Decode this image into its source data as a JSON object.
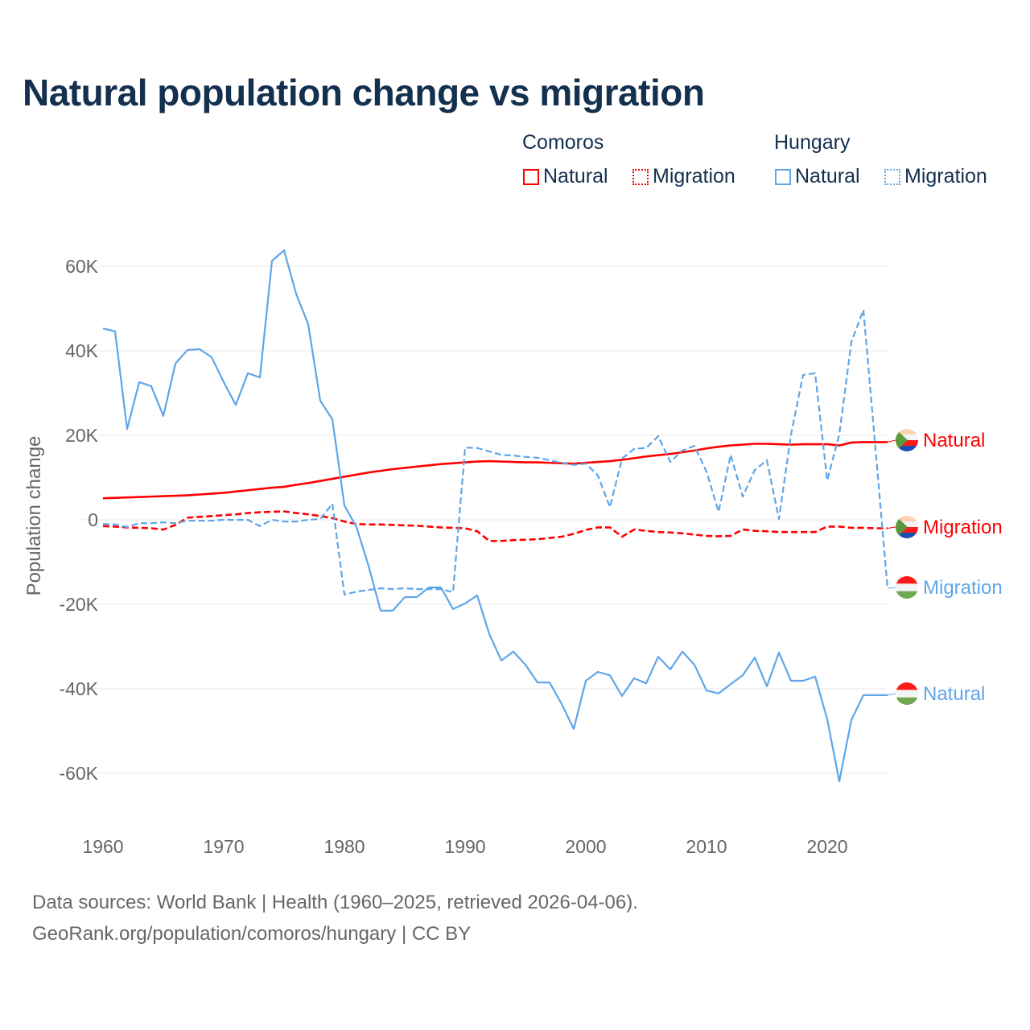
{
  "title": "Natural population change vs migration",
  "legend": {
    "groups": [
      {
        "name": "Comoros",
        "items": [
          "Natural",
          "Migration"
        ]
      },
      {
        "name": "Hungary",
        "items": [
          "Natural",
          "Migration"
        ]
      }
    ]
  },
  "footer": {
    "line1": "Data sources: World Bank | Health (1960–2025, retrieved 2026-04-06).",
    "line2": "GeoRank.org/population/comoros/hungary | CC BY"
  },
  "colors": {
    "comoros": "#ff0000",
    "hungary": "#5ea6e8"
  },
  "chart_data": {
    "type": "line",
    "title": "Natural population change vs migration",
    "xlabel": "",
    "ylabel": "Population change",
    "xlim": [
      1960,
      2025
    ],
    "ylim": [
      -70000,
      65000
    ],
    "x_ticks": [
      "1960",
      "1970",
      "1980",
      "1990",
      "2000",
      "2010",
      "2020"
    ],
    "y_ticks": [
      {
        "v": 60000,
        "label": "60K"
      },
      {
        "v": 40000,
        "label": "40K"
      },
      {
        "v": 20000,
        "label": "20K"
      },
      {
        "v": 0,
        "label": "0"
      },
      {
        "v": -20000,
        "label": "-20K"
      },
      {
        "v": -40000,
        "label": "-40K"
      },
      {
        "v": -60000,
        "label": "-60K"
      }
    ],
    "grid": true,
    "x_start": 1960,
    "unit": "thousands",
    "series": [
      {
        "country": "Comoros",
        "name": "Natural",
        "end_label": "Natural",
        "color": "#ff0000",
        "dash": false,
        "flag": "comoros",
        "values": [
          5.1,
          5.2,
          5.3,
          5.4,
          5.5,
          5.6,
          5.7,
          5.8,
          6.0,
          6.2,
          6.4,
          6.7,
          7.0,
          7.3,
          7.6,
          7.8,
          8.3,
          8.7,
          9.2,
          9.7,
          10.2,
          10.7,
          11.2,
          11.6,
          12.0,
          12.3,
          12.6,
          12.9,
          13.2,
          13.4,
          13.6,
          13.8,
          13.9,
          13.8,
          13.7,
          13.6,
          13.6,
          13.5,
          13.4,
          13.3,
          13.5,
          13.7,
          13.9,
          14.2,
          14.6,
          15.0,
          15.3,
          15.6,
          16.0,
          16.4,
          16.9,
          17.3,
          17.6,
          17.8,
          18.0,
          18.0,
          17.9,
          17.8,
          17.9,
          17.9,
          17.9,
          17.6,
          18.3,
          18.4,
          18.4,
          18.4
        ]
      },
      {
        "country": "Comoros",
        "name": "Migration",
        "end_label": "Migration",
        "color": "#ff0000",
        "dash": true,
        "flag": "comoros",
        "values": [
          -1.5,
          -1.6,
          -1.8,
          -1.9,
          -2.0,
          -2.3,
          -1.2,
          0.5,
          0.7,
          0.9,
          1.1,
          1.3,
          1.6,
          1.8,
          1.9,
          2.0,
          1.6,
          1.3,
          0.9,
          0.4,
          -0.4,
          -1.0,
          -1.1,
          -1.1,
          -1.2,
          -1.3,
          -1.4,
          -1.6,
          -1.8,
          -1.9,
          -2.0,
          -2.7,
          -5.0,
          -5.0,
          -4.8,
          -4.7,
          -4.6,
          -4.3,
          -4.0,
          -3.3,
          -2.4,
          -1.8,
          -1.8,
          -4.0,
          -2.3,
          -2.6,
          -2.9,
          -3.0,
          -3.2,
          -3.5,
          -3.8,
          -3.9,
          -3.8,
          -2.3,
          -2.6,
          -2.7,
          -2.9,
          -2.9,
          -2.9,
          -2.9,
          -1.6,
          -1.6,
          -1.9,
          -1.9,
          -2.0,
          -2.0
        ]
      },
      {
        "country": "Hungary",
        "name": "Migration",
        "end_label": "Migration",
        "color": "#5ea6e8",
        "dash": true,
        "flag": "hungary",
        "values": [
          -1.0,
          -1.1,
          -1.7,
          -0.8,
          -0.8,
          -0.6,
          -0.8,
          -0.2,
          -0.2,
          -0.2,
          0.0,
          0.0,
          0.0,
          -1.5,
          0.0,
          -0.4,
          -0.4,
          0.0,
          0.2,
          3.8,
          -17.7,
          -17.0,
          -16.6,
          -16.2,
          -16.4,
          -16.2,
          -16.4,
          -16.4,
          -16.4,
          -17.1,
          17.1,
          17.0,
          16.2,
          15.4,
          15.2,
          14.9,
          14.7,
          14.1,
          13.5,
          13.0,
          13.3,
          10.5,
          3.0,
          14.5,
          16.8,
          17.0,
          19.8,
          13.7,
          16.4,
          17.5,
          11.4,
          1.9,
          15.4,
          5.5,
          11.8,
          14.1,
          0.2,
          20.2,
          34.3,
          34.7,
          9.3,
          20.2,
          42.1,
          49.7,
          16.8,
          -16.2
        ]
      },
      {
        "country": "Hungary",
        "name": "Natural",
        "end_label": "Natural",
        "color": "#5ea6e8",
        "dash": false,
        "flag": "hungary",
        "values": [
          45.3,
          44.6,
          21.5,
          32.6,
          31.6,
          24.6,
          37.0,
          40.2,
          40.4,
          38.5,
          32.6,
          27.2,
          34.7,
          33.7,
          61.3,
          63.8,
          53.5,
          46.3,
          28.2,
          23.8,
          3.4,
          -1.7,
          -10.9,
          -21.5,
          -21.5,
          -18.3,
          -18.3,
          -16.0,
          -16.0,
          -21.1,
          -19.8,
          -17.9,
          -27.0,
          -33.3,
          -31.2,
          -34.3,
          -38.5,
          -38.5,
          -43.6,
          -49.5,
          -38.1,
          -36.0,
          -36.8,
          -41.7,
          -37.5,
          -38.7,
          -32.4,
          -35.4,
          -31.2,
          -34.3,
          -40.4,
          -41.1,
          -38.9,
          -36.8,
          -32.6,
          -39.4,
          -31.4,
          -38.1,
          -38.1,
          -37.1,
          -47.2,
          -61.9,
          -47.4,
          -41.5,
          -41.5,
          -41.5
        ]
      }
    ]
  }
}
